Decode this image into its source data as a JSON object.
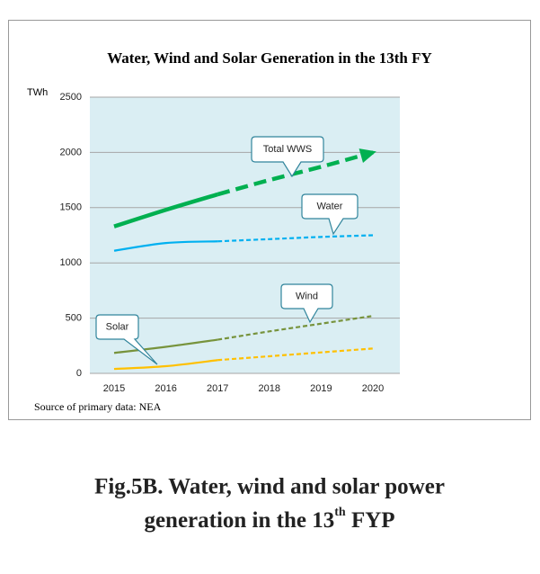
{
  "chart_data": {
    "type": "line",
    "title": "Water, Wind and Solar Generation in the 13th FY",
    "ylabel": "TWh",
    "categories": [
      "2015",
      "2016",
      "2017",
      "2018",
      "2019",
      "2020"
    ],
    "dashed_from_index": 2,
    "series": [
      {
        "name": "Total WWS",
        "color": "#00b050",
        "values": [
          1330,
          1480,
          1620,
          1750,
          1870,
          2000
        ]
      },
      {
        "name": "Water",
        "color": "#00b0f0",
        "values": [
          1110,
          1180,
          1195,
          1215,
          1235,
          1250
        ]
      },
      {
        "name": "Wind",
        "color": "#77933c",
        "values": [
          185,
          240,
          305,
          380,
          450,
          520
        ]
      },
      {
        "name": "Solar",
        "color": "#ffc000",
        "values": [
          40,
          65,
          120,
          155,
          190,
          225
        ]
      }
    ],
    "ylim": [
      0,
      2500
    ],
    "yticks": [
      0,
      500,
      1000,
      1500,
      2000,
      2500
    ],
    "grid": true,
    "source": "Source of primary data: NEA"
  },
  "caption": {
    "line1": "Fig.5B. Water, wind and solar power",
    "line2": "generation in the 13",
    "sup": "th",
    "line2_end": " FYP"
  }
}
